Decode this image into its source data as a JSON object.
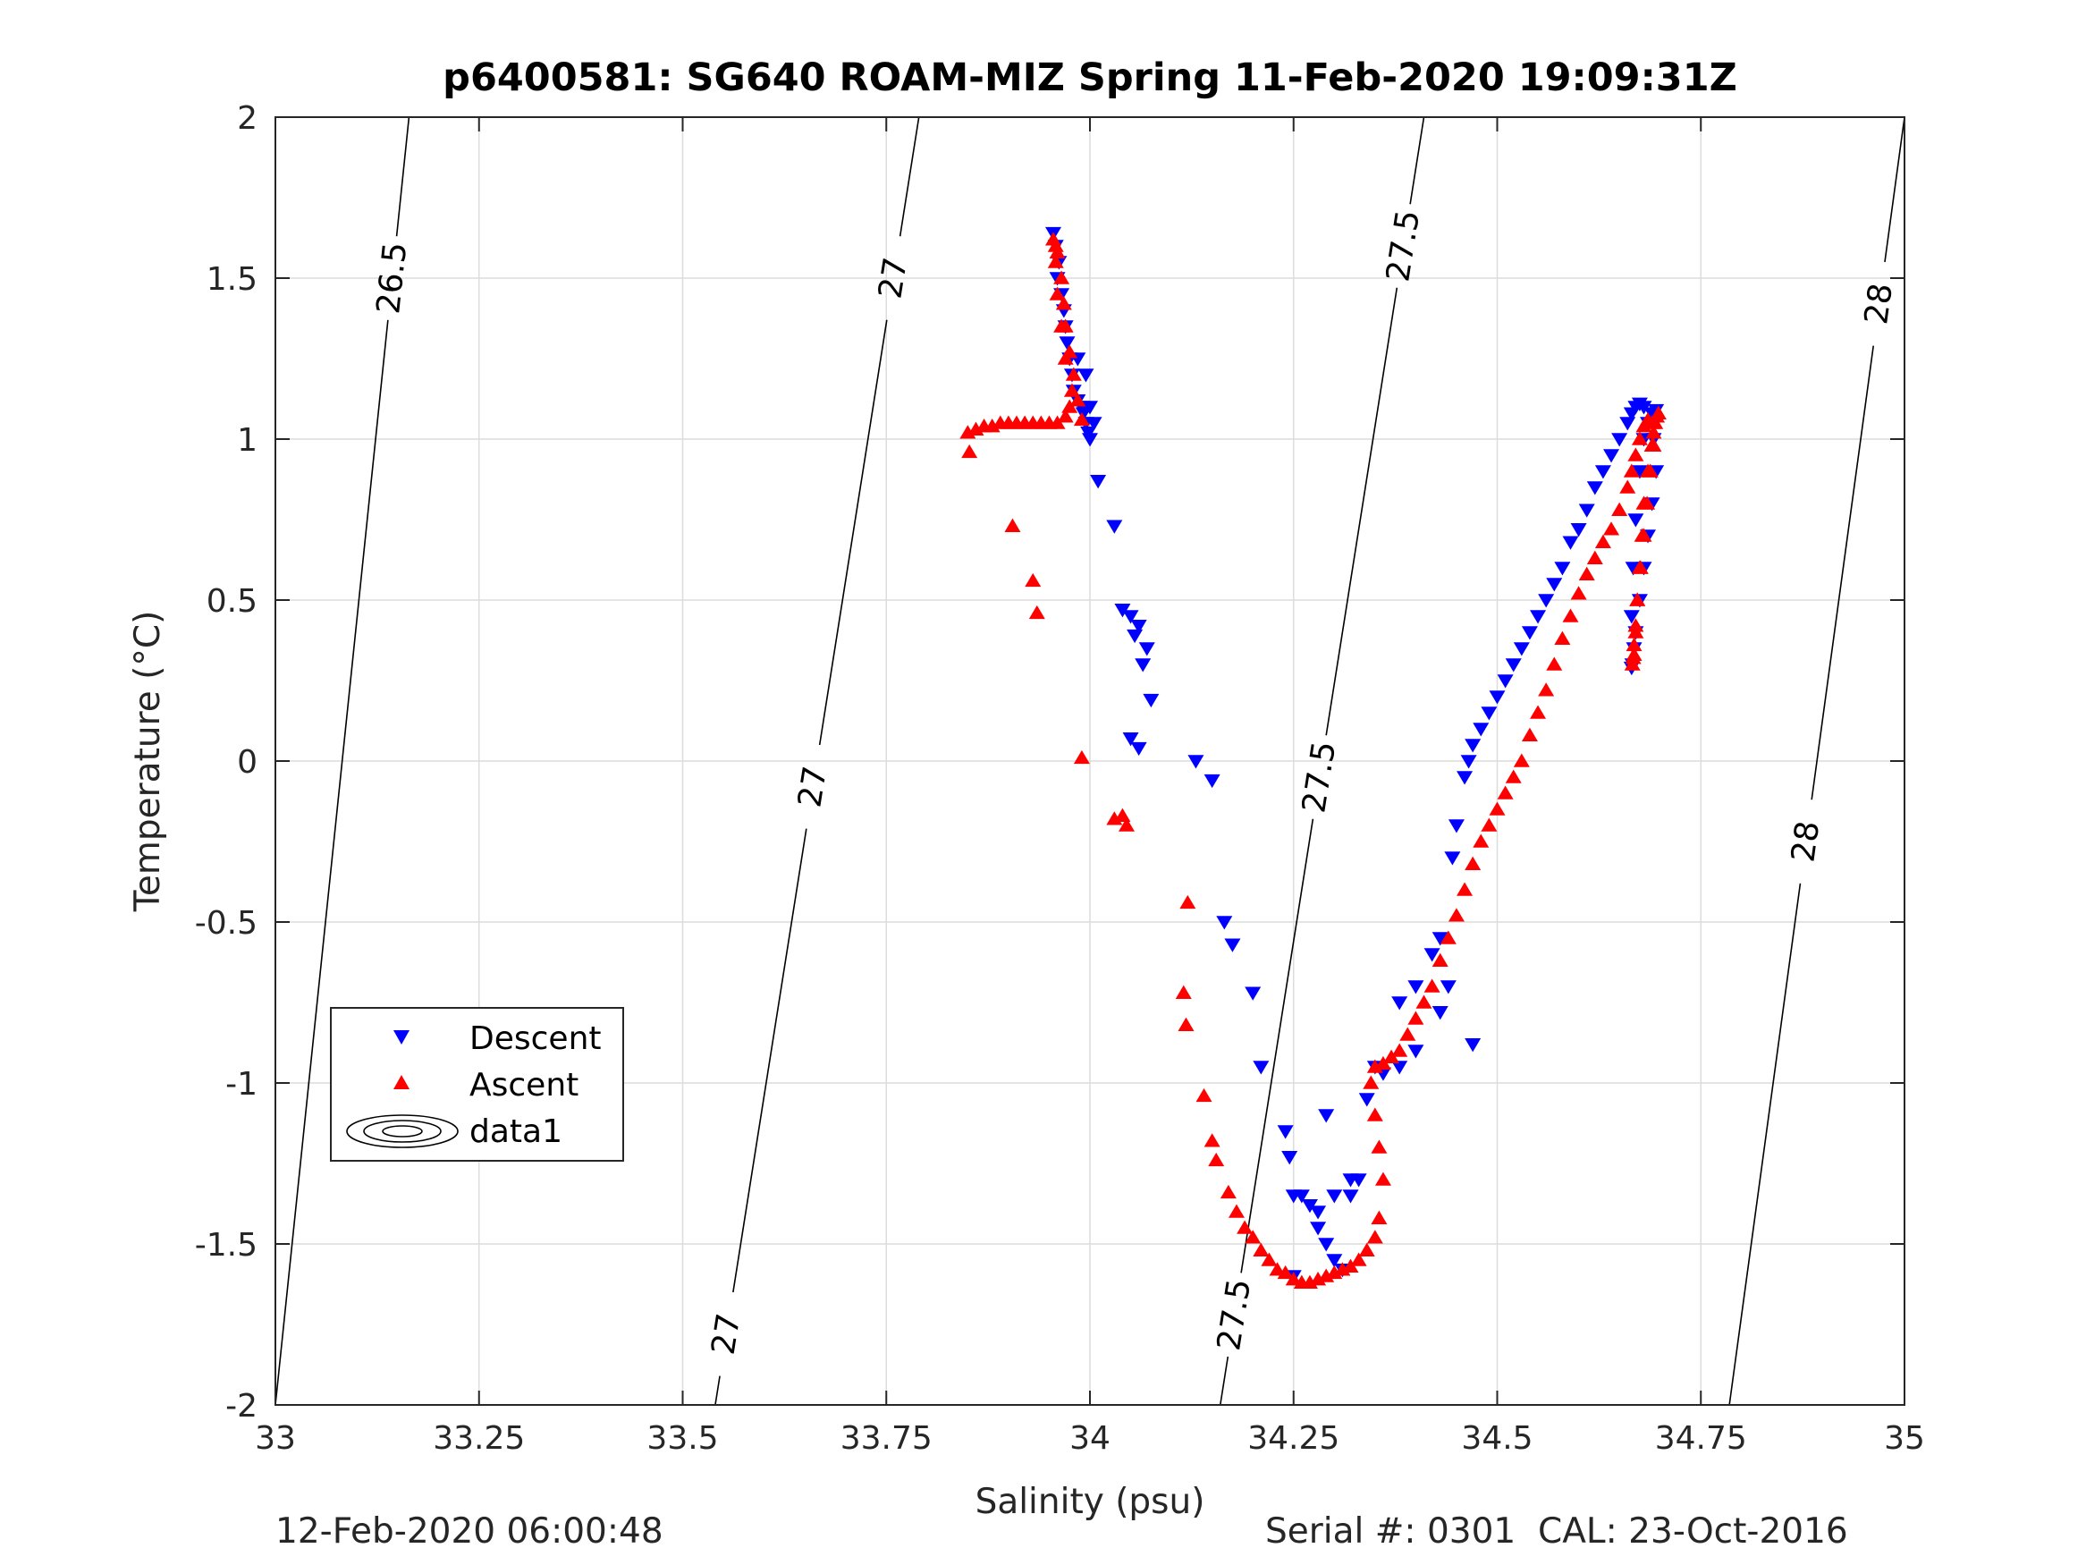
{
  "footer": {
    "left": "12-Feb-2020 06:00:48",
    "right": "Serial #: 0301  CAL: 23-Oct-2016"
  },
  "chart_data": {
    "type": "scatter",
    "title": "p6400581: SG640 ROAM-MIZ Spring 11-Feb-2020 19:09:31Z",
    "xlabel": "Salinity (psu)",
    "ylabel": "Temperature (°C)",
    "xlim": [
      33,
      35
    ],
    "ylim": [
      -2,
      2
    ],
    "xticks": [
      33,
      33.25,
      33.5,
      33.75,
      34,
      34.25,
      34.5,
      34.75,
      35
    ],
    "xtick_labels": [
      "33",
      "33.25",
      "33.5",
      "33.75",
      "34",
      "34.25",
      "34.5",
      "34.75",
      "35"
    ],
    "yticks": [
      2,
      1.5,
      1,
      0.5,
      0,
      -0.5,
      -1,
      -1.5,
      -2
    ],
    "ytick_labels": [
      "2",
      "1.5",
      "1",
      "0.5",
      "0",
      "-0.5",
      "-1",
      "-1.5",
      "-2"
    ],
    "grid": true,
    "legend": {
      "placement": "lower-left",
      "entries": [
        "Descent",
        "Ascent",
        "data1"
      ]
    },
    "colors": {
      "descent": "#0000ff",
      "ascent": "#ff0000",
      "contour": "#000000",
      "grid": "#dcdcdc",
      "axis": "#262626"
    },
    "series": [
      {
        "name": "Descent",
        "marker": "triangle-down",
        "x": [
          33.955,
          33.958,
          33.962,
          33.96,
          33.965,
          33.968,
          33.97,
          33.972,
          33.975,
          33.978,
          33.98,
          33.985,
          33.99,
          33.992,
          33.995,
          33.998,
          34.0,
          33.985,
          33.995,
          34.0,
          34.005,
          34.01,
          34.03,
          34.04,
          34.05,
          34.06,
          34.07,
          34.055,
          34.065,
          34.075,
          34.06,
          34.05,
          34.13,
          34.15,
          34.165,
          34.175,
          34.2,
          34.21,
          34.24,
          34.245,
          34.25,
          34.26,
          34.27,
          34.28,
          34.29,
          34.3,
          34.31,
          34.32,
          34.33,
          34.34,
          34.35,
          34.36,
          34.38,
          34.4,
          34.42,
          34.43,
          34.445,
          34.45,
          34.46,
          34.465,
          34.47,
          34.48,
          34.49,
          34.5,
          34.51,
          34.52,
          34.53,
          34.54,
          34.55,
          34.56,
          34.57,
          34.58,
          34.59,
          34.6,
          34.61,
          34.62,
          34.63,
          34.64,
          34.65,
          34.66,
          34.665,
          34.67,
          34.675,
          34.68,
          34.69,
          34.692,
          34.695,
          34.69,
          34.685,
          34.68,
          34.675,
          34.67,
          34.668,
          34.666,
          34.665,
          34.665,
          34.667,
          34.67,
          34.675,
          34.68,
          34.685,
          34.69,
          34.695,
          34.47,
          34.43,
          34.44,
          34.4,
          34.38,
          34.29,
          34.28,
          34.3,
          34.32,
          34.25
        ],
        "y": [
          1.64,
          1.6,
          1.55,
          1.5,
          1.45,
          1.4,
          1.35,
          1.3,
          1.25,
          1.2,
          1.15,
          1.12,
          1.1,
          1.08,
          1.05,
          1.02,
          1.0,
          1.25,
          1.2,
          1.1,
          1.05,
          0.87,
          0.73,
          0.47,
          0.45,
          0.42,
          0.35,
          0.39,
          0.3,
          0.19,
          0.04,
          0.07,
          0.0,
          -0.06,
          -0.5,
          -0.57,
          -0.72,
          -0.95,
          -1.15,
          -1.23,
          -1.35,
          -1.35,
          -1.38,
          -1.45,
          -1.5,
          -1.55,
          -1.58,
          -1.35,
          -1.3,
          -1.05,
          -0.95,
          -0.97,
          -0.75,
          -0.7,
          -0.6,
          -0.55,
          -0.3,
          -0.2,
          -0.05,
          0.0,
          0.05,
          0.1,
          0.15,
          0.2,
          0.25,
          0.3,
          0.35,
          0.4,
          0.45,
          0.5,
          0.55,
          0.6,
          0.68,
          0.72,
          0.78,
          0.85,
          0.9,
          0.95,
          1.0,
          1.05,
          1.08,
          1.1,
          1.11,
          1.1,
          1.08,
          1.0,
          0.9,
          0.8,
          0.7,
          0.6,
          0.5,
          0.4,
          0.35,
          0.3,
          0.29,
          0.45,
          0.6,
          0.75,
          0.9,
          1.0,
          1.05,
          1.08,
          1.09,
          -0.88,
          -0.78,
          -0.7,
          -0.9,
          -0.95,
          -1.1,
          -1.4,
          -1.35,
          -1.3,
          -1.6
        ]
      },
      {
        "name": "Ascent",
        "marker": "triangle-up",
        "x": [
          33.85,
          33.852,
          33.86,
          33.87,
          33.88,
          33.89,
          33.9,
          33.91,
          33.92,
          33.93,
          33.94,
          33.95,
          33.96,
          33.97,
          33.975,
          33.978,
          33.97,
          33.965,
          33.96,
          33.958,
          33.955,
          33.958,
          33.96,
          33.965,
          33.968,
          33.97,
          33.975,
          33.98,
          33.985,
          33.99,
          33.905,
          33.93,
          33.935,
          33.99,
          34.03,
          34.04,
          34.045,
          34.12,
          34.115,
          34.118,
          34.14,
          34.15,
          34.155,
          34.17,
          34.18,
          34.19,
          34.2,
          34.21,
          34.22,
          34.23,
          34.24,
          34.25,
          34.26,
          34.27,
          34.28,
          34.29,
          34.3,
          34.31,
          34.32,
          34.33,
          34.34,
          34.35,
          34.355,
          34.36,
          34.355,
          34.35,
          34.345,
          34.35,
          34.36,
          34.37,
          34.38,
          34.39,
          34.4,
          34.41,
          34.42,
          34.43,
          34.44,
          34.45,
          34.46,
          34.47,
          34.48,
          34.49,
          34.5,
          34.51,
          34.52,
          34.53,
          34.54,
          34.55,
          34.56,
          34.57,
          34.58,
          34.59,
          34.6,
          34.61,
          34.62,
          34.63,
          34.64,
          34.65,
          34.66,
          34.665,
          34.67,
          34.675,
          34.68,
          34.685,
          34.69,
          34.692,
          34.688,
          34.684,
          34.68,
          34.676,
          34.672,
          34.67,
          34.668,
          34.667,
          34.666,
          34.668,
          34.67,
          34.672,
          34.675,
          34.678,
          34.68,
          34.685,
          34.69,
          34.692,
          34.694,
          34.696,
          34.698
        ],
        "y": [
          1.02,
          0.96,
          1.03,
          1.04,
          1.04,
          1.05,
          1.05,
          1.05,
          1.05,
          1.05,
          1.05,
          1.05,
          1.05,
          1.07,
          1.1,
          1.15,
          1.25,
          1.35,
          1.45,
          1.55,
          1.62,
          1.6,
          1.58,
          1.5,
          1.42,
          1.35,
          1.27,
          1.2,
          1.12,
          1.06,
          0.73,
          0.56,
          0.46,
          0.01,
          -0.18,
          -0.17,
          -0.2,
          -0.44,
          -0.72,
          -0.82,
          -1.04,
          -1.18,
          -1.24,
          -1.34,
          -1.4,
          -1.45,
          -1.48,
          -1.52,
          -1.55,
          -1.58,
          -1.59,
          -1.61,
          -1.62,
          -1.62,
          -1.61,
          -1.6,
          -1.59,
          -1.58,
          -1.57,
          -1.55,
          -1.52,
          -1.48,
          -1.42,
          -1.3,
          -1.2,
          -1.1,
          -1.0,
          -0.95,
          -0.94,
          -0.92,
          -0.9,
          -0.85,
          -0.8,
          -0.75,
          -0.7,
          -0.62,
          -0.55,
          -0.48,
          -0.4,
          -0.32,
          -0.25,
          -0.2,
          -0.15,
          -0.1,
          -0.05,
          0.0,
          0.08,
          0.15,
          0.22,
          0.3,
          0.38,
          0.45,
          0.52,
          0.58,
          0.63,
          0.68,
          0.72,
          0.78,
          0.85,
          0.9,
          0.95,
          1.0,
          1.04,
          1.06,
          1.05,
          0.98,
          0.9,
          0.8,
          0.7,
          0.6,
          0.5,
          0.42,
          0.36,
          0.32,
          0.3,
          0.33,
          0.4,
          0.5,
          0.6,
          0.7,
          0.8,
          0.9,
          0.98,
          1.02,
          1.05,
          1.07,
          1.08
        ]
      }
    ],
    "contours": [
      {
        "level": "26.5",
        "x0": 33.0,
        "x1": 33.164,
        "slope": 4.95,
        "labels": [
          {
            "text": "26.5",
            "t": 1.5
          }
        ]
      },
      {
        "level": "27",
        "x0": 33.54,
        "x1": 33.79,
        "slope": 4.95,
        "labels": [
          {
            "text": "27",
            "t": 1.5
          },
          {
            "text": "27",
            "t": -0.08
          },
          {
            "text": "27",
            "t": -1.78
          }
        ]
      },
      {
        "level": "27.5",
        "x0": 34.16,
        "x1": 34.41,
        "slope": 4.95,
        "labels": [
          {
            "text": "27.5",
            "t": 1.6
          },
          {
            "text": "27.5",
            "t": -0.05
          },
          {
            "text": "27.5",
            "t": -1.72
          }
        ]
      },
      {
        "level": "28",
        "x0": 34.785,
        "x1": 35.0,
        "slope": 4.95,
        "labels": [
          {
            "text": "28",
            "t": 1.42
          },
          {
            "text": "28",
            "t": -0.25
          }
        ]
      }
    ]
  }
}
